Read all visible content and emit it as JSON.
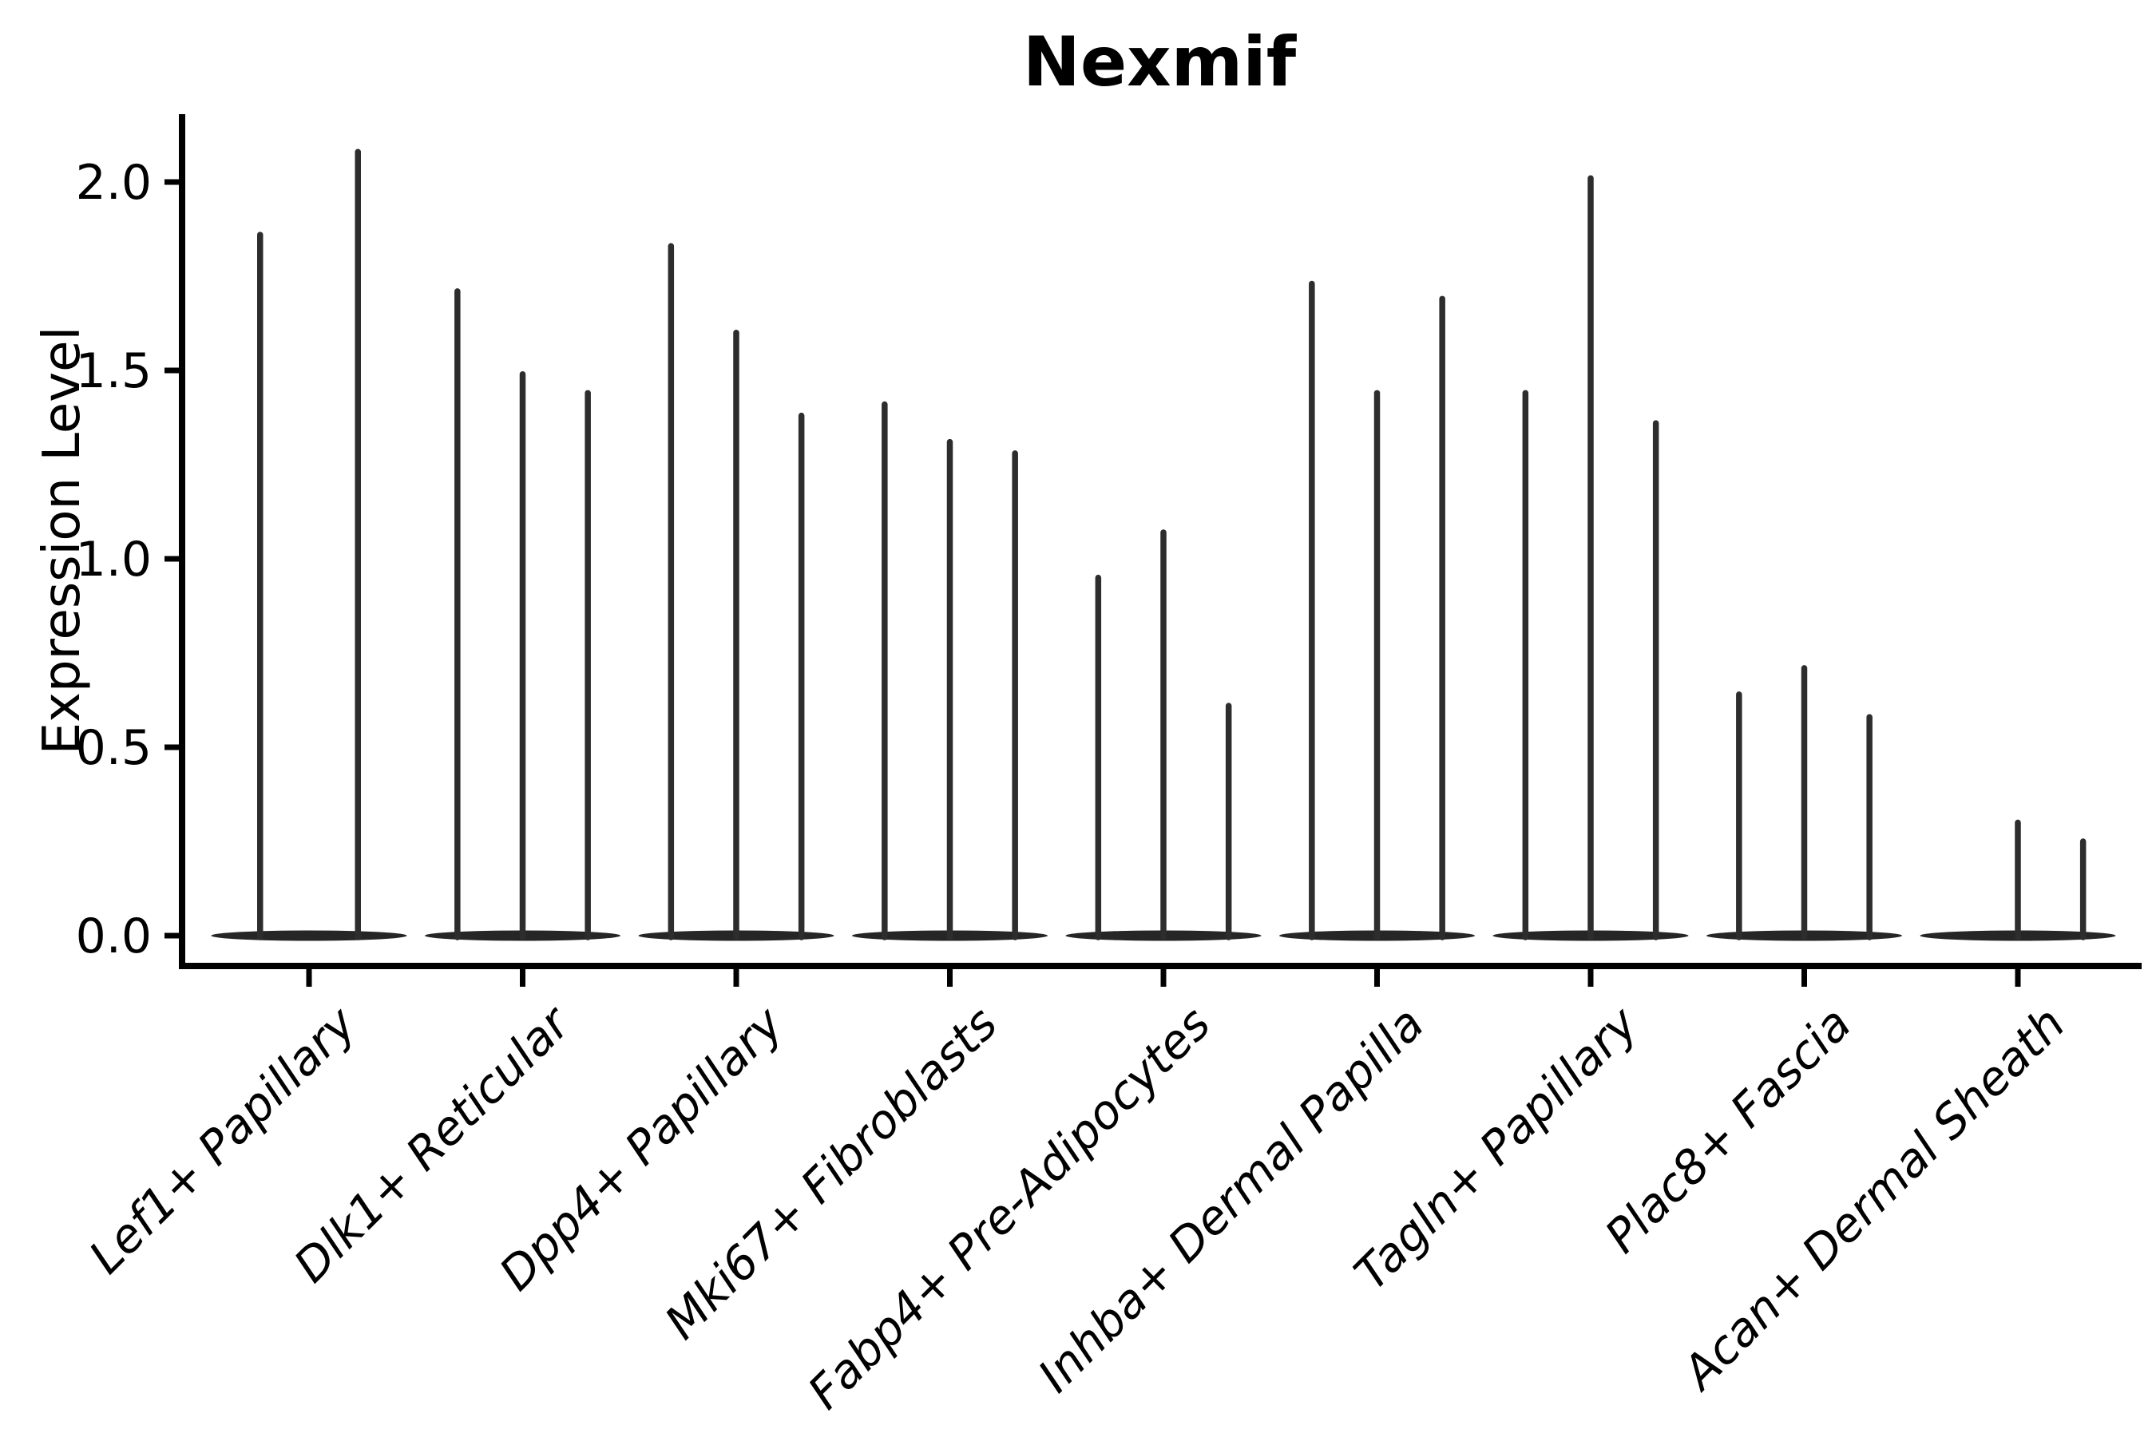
{
  "chart_data": {
    "type": "violin",
    "title": "Nexmif",
    "xlabel": "",
    "ylabel": "Expression Level",
    "ylim": [
      0,
      2.15
    ],
    "yticks": [
      "0.0",
      "0.5",
      "1.0",
      "1.5",
      "2.0"
    ],
    "ytick_values": [
      0.0,
      0.5,
      1.0,
      1.5,
      2.0
    ],
    "grid": "off",
    "legend": "none",
    "categories": [
      "Lef1+ Papillary",
      "Dlk1+ Reticular",
      "Dpp4+ Papillary",
      "Mki67+ Fibroblasts",
      "Fabp4+ Pre-Adipocytes",
      "Inhba+ Dermal Papilla",
      "Tagln+ Papillary",
      "Plac8+ Fascia",
      "Acan+ Dermal Sheath"
    ],
    "groups": [
      {
        "category": "Lef1+ Papillary",
        "violin_max": [
          1.86,
          2.08
        ]
      },
      {
        "category": "Dlk1+ Reticular",
        "violin_max": [
          1.71,
          1.49,
          1.44
        ]
      },
      {
        "category": "Dpp4+ Papillary",
        "violin_max": [
          1.83,
          1.6,
          1.38
        ]
      },
      {
        "category": "Mki67+ Fibroblasts",
        "violin_max": [
          1.41,
          1.31,
          1.28
        ]
      },
      {
        "category": "Fabp4+ Pre-Adipocytes",
        "violin_max": [
          0.95,
          1.07,
          0.61
        ]
      },
      {
        "category": "Inhba+ Dermal Papilla",
        "violin_max": [
          1.73,
          1.44,
          1.69
        ]
      },
      {
        "category": "Tagln+ Papillary",
        "violin_max": [
          1.44,
          2.01,
          1.36
        ]
      },
      {
        "category": "Plac8+ Fascia",
        "violin_max": [
          0.64,
          0.71,
          0.58
        ]
      },
      {
        "category": "Acan+ Dermal Sheath",
        "violin_max": [
          0.0,
          0.3,
          0.25
        ]
      }
    ],
    "colors": {
      "background": "#ffffff",
      "axis": "#000000",
      "text": "#000000",
      "violin_spike": "#2d2d2d",
      "violin_base": "#262626"
    }
  }
}
